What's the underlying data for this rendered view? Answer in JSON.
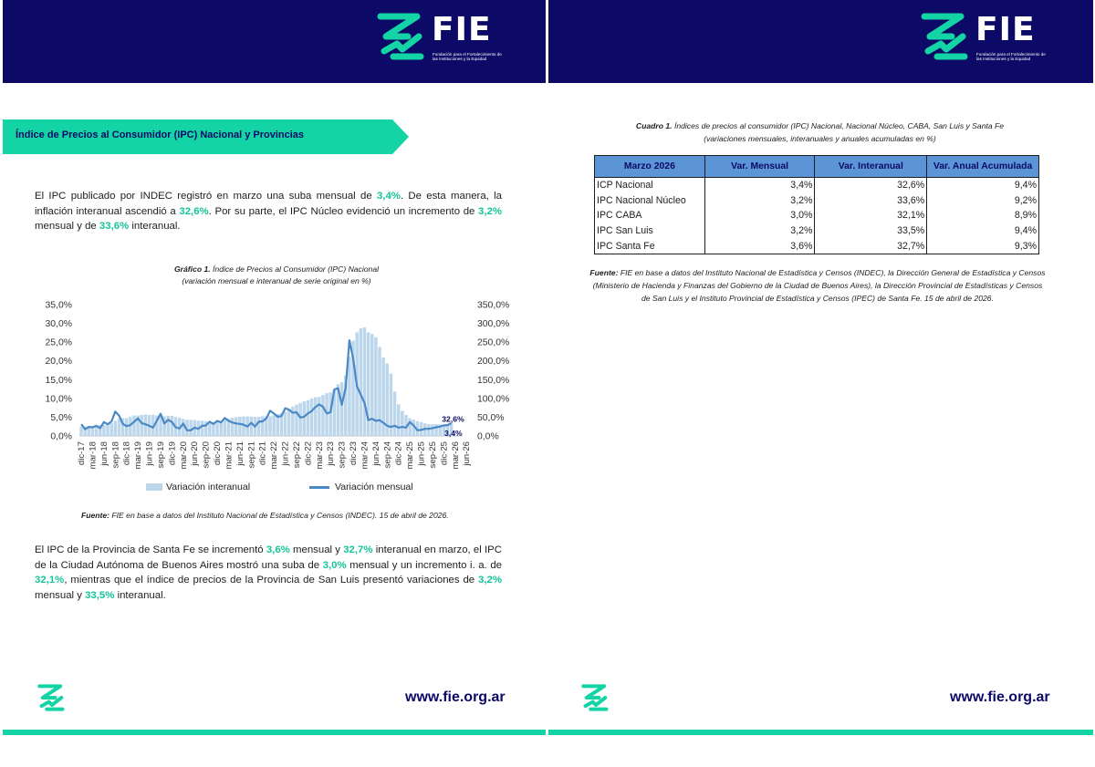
{
  "brand": {
    "word": "FIE",
    "subtitle": "Fundación para el Fortalecimiento de las Instituciones y la Equidad",
    "url": "www.fie.org.ar",
    "navy": "#0c0a66",
    "green": "#14d3a4"
  },
  "section_title": "Índice de Precios al Consumidor (IPC) Nacional y Provincias",
  "paragraph1": [
    {
      "t": "El IPC publicado por INDEC registró en marzo una suba mensual de ",
      "hl": false
    },
    {
      "t": "3,4%",
      "hl": true
    },
    {
      "t": ". De esta manera, la inflación interanual ascendió a ",
      "hl": false
    },
    {
      "t": "32,6%",
      "hl": true
    },
    {
      "t": ". Por su parte, el IPC Núcleo evidenció un incremento de ",
      "hl": false
    },
    {
      "t": "3,2%",
      "hl": true
    },
    {
      "t": " mensual y de ",
      "hl": false
    },
    {
      "t": "33,6%",
      "hl": true
    },
    {
      "t": " interanual.",
      "hl": false
    }
  ],
  "paragraph2": [
    {
      "t": "El IPC de la Provincia de Santa Fe se incrementó ",
      "hl": false
    },
    {
      "t": "3,6%",
      "hl": true
    },
    {
      "t": " mensual y ",
      "hl": false
    },
    {
      "t": "32,7%",
      "hl": true
    },
    {
      "t": " interanual en marzo, el IPC de la Ciudad Autónoma de Buenos Aires mostró una suba de ",
      "hl": false
    },
    {
      "t": "3,0%",
      "hl": true
    },
    {
      "t": " mensual y un incremento i. a. de ",
      "hl": false
    },
    {
      "t": "32,1%",
      "hl": true
    },
    {
      "t": ", mientras que el índice de precios de la Provincia de San Luis presentó variaciones de ",
      "hl": false
    },
    {
      "t": "3,2%",
      "hl": true
    },
    {
      "t": " mensual y ",
      "hl": false
    },
    {
      "t": "33,5%",
      "hl": true
    },
    {
      "t": " interanual.",
      "hl": false
    }
  ],
  "chart_caption": {
    "label": "Gráfico 1.",
    "title": " Índice de Precios al Consumidor (IPC) Nacional",
    "subtitle": "(variación mensual e interanual de serie original en %)"
  },
  "chart_source": {
    "label": "Fuente:",
    "text": " FIE en base a datos del Instituto Nacional de Estadística y Censos (INDEC). 15 de abril de 2026."
  },
  "chart_data": {
    "type": "bar+line",
    "left_axis": {
      "ylim": [
        0,
        35
      ],
      "ticks": [
        "0,0%",
        "5,0%",
        "10,0%",
        "15,0%",
        "20,0%",
        "25,0%",
        "30,0%",
        "35,0%"
      ],
      "series": "Variación mensual"
    },
    "right_axis": {
      "ylim": [
        0,
        350
      ],
      "ticks": [
        "0,0%",
        "50,0%",
        "100,0%",
        "150,0%",
        "200,0%",
        "250,0%",
        "300,0%",
        "350,0%"
      ],
      "series": "Variación interanual"
    },
    "x_ticks": [
      "dic-17",
      "mar-18",
      "jun-18",
      "sep-18",
      "dic-18",
      "mar-19",
      "jun-19",
      "sep-19",
      "dic-19",
      "mar-20",
      "jun-20",
      "sep-20",
      "dic-20",
      "mar-21",
      "jun-21",
      "sep-21",
      "dic-21",
      "mar-22",
      "jun-22",
      "sep-22",
      "dic-22",
      "mar-23",
      "jun-23",
      "sep-23",
      "dic-23",
      "mar-24",
      "jun-24",
      "sep-24",
      "dic-24",
      "mar-25",
      "jun-25",
      "sep-25",
      "dic-25",
      "mar-26",
      "jun-26"
    ],
    "legend_placement": "bottom",
    "series": [
      {
        "name": "Variación interanual",
        "kind": "bar",
        "axis": "right",
        "color": "#bcd6ec",
        "values": [
          24.8,
          25.0,
          25.4,
          25.4,
          26.3,
          29.5,
          29.5,
          31.2,
          34.4,
          40.5,
          45.9,
          47.6,
          47.6,
          51.3,
          54.7,
          54.5,
          55.8,
          57.3,
          55.8,
          56.5,
          54.4,
          50.5,
          52.1,
          53.8,
          53.5,
          50.3,
          48.4,
          45.5,
          43.4,
          42.8,
          42.4,
          40.7,
          40.5,
          39.0,
          35.8,
          36.6,
          36.1,
          38.5,
          42.6,
          46.3,
          48.8,
          50.2,
          51.4,
          51.8,
          52.1,
          51.4,
          50.9,
          50.7,
          52.5,
          52.3,
          52.5,
          55.1,
          58.0,
          60.7,
          64.0,
          71.0,
          78.5,
          83.0,
          88.0,
          92.4,
          95.0,
          100.0,
          103.0,
          104.0,
          109.0,
          114.0,
          116.0,
          124.0,
          138.0,
          143.0,
          161.0,
          211.0,
          254.0,
          276.0,
          287.0,
          289.0,
          276.0,
          272.0,
          263.0,
          237.0,
          209.0,
          193.0,
          166.0,
          118.0,
          84.5,
          66.9,
          55.9,
          47.3,
          43.5,
          39.4,
          37.0,
          33.6,
          31.5,
          31.3,
          31.8,
          31.2,
          31.4,
          32.0,
          32.6
        ]
      },
      {
        "name": "Variación mensual",
        "kind": "line",
        "axis": "left",
        "color": "#4a89c6",
        "values": [
          3.1,
          1.8,
          2.4,
          2.3,
          2.7,
          2.1,
          3.7,
          3.1,
          3.9,
          6.5,
          5.4,
          3.2,
          2.6,
          2.9,
          3.8,
          4.7,
          3.4,
          3.1,
          2.7,
          2.2,
          4.0,
          5.9,
          3.3,
          4.3,
          3.7,
          2.3,
          2.0,
          3.3,
          1.5,
          1.5,
          2.2,
          1.9,
          2.7,
          2.8,
          3.8,
          3.2,
          4.0,
          3.6,
          4.8,
          4.0,
          3.6,
          3.3,
          3.2,
          3.0,
          2.5,
          3.5,
          2.5,
          3.8,
          3.9,
          4.7,
          6.7,
          6.0,
          5.1,
          5.3,
          7.4,
          7.0,
          6.2,
          6.3,
          4.9,
          5.1,
          6.0,
          6.6,
          7.7,
          8.4,
          7.8,
          6.0,
          6.3,
          12.4,
          12.7,
          8.3,
          12.8,
          25.5,
          20.6,
          13.2,
          11.0,
          8.8,
          4.2,
          4.6,
          4.0,
          4.2,
          3.5,
          2.7,
          2.4,
          2.7,
          2.2,
          2.4,
          2.2,
          3.7,
          2.8,
          1.5,
          1.6,
          1.9,
          1.9,
          2.1,
          2.3,
          2.5,
          2.8,
          2.9,
          3.4
        ]
      }
    ],
    "annotations": [
      {
        "series": "Variación interanual",
        "label": "32,6%"
      },
      {
        "series": "Variación mensual",
        "label": "3,4%"
      }
    ]
  },
  "table_caption": {
    "label": "Cuadro 1.",
    "title": " Índices de precios al consumidor (IPC) Nacional, Nacional Núcleo, CABA, San Luis y Santa Fe",
    "subtitle": "(variaciones mensuales, interanuales y anuales acumuladas en %)"
  },
  "table": {
    "headers": [
      "Marzo 2026",
      "Var. Mensual",
      "Var. Interanual",
      "Var. Anual Acumulada"
    ],
    "rows": [
      [
        "ICP Nacional",
        "3,4%",
        "32,6%",
        "9,4%"
      ],
      [
        "IPC Nacional Núcleo",
        "3,2%",
        "33,6%",
        "9,2%"
      ],
      [
        "IPC CABA",
        "3,0%",
        "32,1%",
        "8,9%"
      ],
      [
        "IPC San Luis",
        "3,2%",
        "33,5%",
        "9,4%"
      ],
      [
        "IPC Santa Fe",
        "3,6%",
        "32,7%",
        "9,3%"
      ]
    ]
  },
  "table_source": {
    "label": "Fuente:",
    "text": " FIE en base a datos del Instituto Nacional de Estadística y Censos (INDEC), la Dirección General de Estadística y Censos (Ministerio de Hacienda y Finanzas del Gobierno de la Ciudad de Buenos Aires), la Dirección Provincial de Estadísticas y Censos de San Luis y el Instituto Provincial de Estadística y Censos (IPEC) de Santa Fe. 15 de abril de 2026."
  }
}
